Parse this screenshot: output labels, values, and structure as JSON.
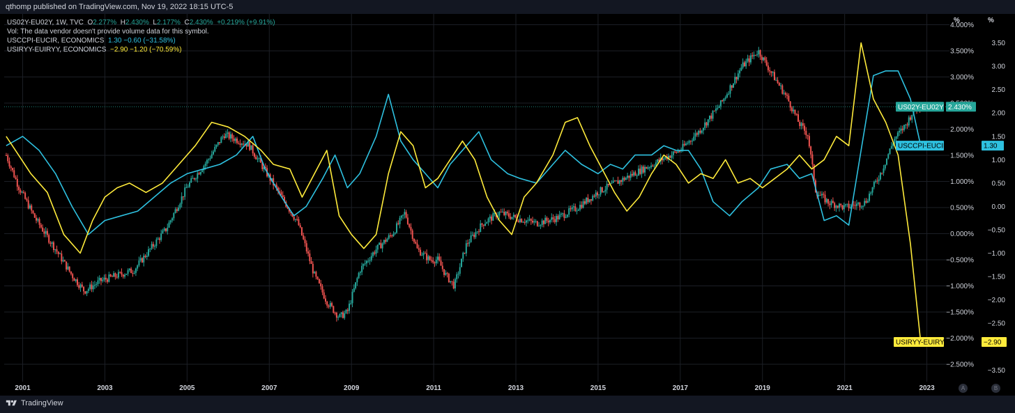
{
  "header": {
    "publish_line": "qthomp published on TradingView.com, Nov 19, 2022 18:15 UTC-5"
  },
  "legend": {
    "symbol": "US02Y-EU02Y, 1W, TVC",
    "o_label": "O",
    "o_value": "2.277%",
    "h_label": "H",
    "h_value": "2.430%",
    "l_label": "L",
    "l_value": "2.177%",
    "c_label": "C",
    "c_value": "2.430%",
    "change": "+0.219% (+9.91%)",
    "vol_note": "Vol: The data vendor doesn't provide volume data for this symbol.",
    "cpi_name": "USCCPI-EUCIR, ECONOMICS",
    "cpi_values": "1.30  −0.60 (−31.58%)",
    "iryy_name": "USIRYY-EUIRYY, ECONOMICS",
    "iryy_values": "−2.90  −1.20 (−70.59%)"
  },
  "footer": {
    "brand": "TradingView",
    "btn_a": "A",
    "btn_b": "B"
  },
  "colors": {
    "bg": "#000000",
    "up": "#26a69a",
    "down": "#ef5350",
    "cpi": "#2ec1e0",
    "iryy": "#ffeb3b",
    "grid": "#1c1f26"
  },
  "chart_data": {
    "type": "line",
    "title": "",
    "x_label": "",
    "time_ticks": [
      "2001",
      "2003",
      "2005",
      "2007",
      "2009",
      "2011",
      "2013",
      "2015",
      "2017",
      "2019",
      "2021",
      "2023"
    ],
    "left_axis": {
      "header": "%",
      "ticks": [
        "4.000%",
        "3.500%",
        "3.000%",
        "2.500%",
        "2.000%",
        "1.500%",
        "1.000%",
        "0.500%",
        "0.000%",
        "−0.500%",
        "−1.000%",
        "−1.500%",
        "−2.000%",
        "−2.500%"
      ],
      "range": [
        -2.7,
        4.1
      ]
    },
    "right_axis": {
      "header": "%",
      "ticks": [
        "3.50",
        "3.00",
        "2.50",
        "2.00",
        "1.50",
        "1.00",
        "0.50",
        "0.00",
        "−0.50",
        "−1.00",
        "−1.50",
        "−2.00",
        "−2.50",
        "−3.50"
      ],
      "range": [
        -3.6,
        4.0
      ]
    },
    "series": [
      {
        "name": "US02Y-EU02Y",
        "style": "candles",
        "axis": "left",
        "last_label": "2.430%",
        "points": [
          [
            2000.6,
            1.5
          ],
          [
            2000.9,
            0.9
          ],
          [
            2001.3,
            0.3
          ],
          [
            2001.8,
            -0.3
          ],
          [
            2002.2,
            -0.8
          ],
          [
            2002.5,
            -1.1
          ],
          [
            2002.9,
            -0.9
          ],
          [
            2003.3,
            -0.8
          ],
          [
            2003.7,
            -0.7
          ],
          [
            2004.0,
            -0.4
          ],
          [
            2004.5,
            0.1
          ],
          [
            2005.0,
            0.9
          ],
          [
            2005.5,
            1.4
          ],
          [
            2005.9,
            1.9
          ],
          [
            2006.5,
            1.7
          ],
          [
            2006.9,
            1.2
          ],
          [
            2007.3,
            0.7
          ],
          [
            2007.7,
            0.2
          ],
          [
            2008.1,
            -0.8
          ],
          [
            2008.4,
            -1.3
          ],
          [
            2008.7,
            -1.6
          ],
          [
            2008.9,
            -1.5
          ],
          [
            2009.2,
            -0.7
          ],
          [
            2009.6,
            -0.3
          ],
          [
            2010.0,
            0.0
          ],
          [
            2010.3,
            0.4
          ],
          [
            2010.6,
            -0.3
          ],
          [
            2010.9,
            -0.5
          ],
          [
            2011.1,
            -0.5
          ],
          [
            2011.3,
            -0.8
          ],
          [
            2011.5,
            -1.0
          ],
          [
            2011.8,
            -0.2
          ],
          [
            2012.2,
            0.2
          ],
          [
            2012.6,
            0.4
          ],
          [
            2013.0,
            0.3
          ],
          [
            2013.5,
            0.2
          ],
          [
            2014.0,
            0.3
          ],
          [
            2014.5,
            0.5
          ],
          [
            2015.0,
            0.8
          ],
          [
            2015.5,
            1.0
          ],
          [
            2016.0,
            1.2
          ],
          [
            2016.5,
            1.4
          ],
          [
            2017.0,
            1.6
          ],
          [
            2017.5,
            2.0
          ],
          [
            2018.0,
            2.5
          ],
          [
            2018.5,
            3.2
          ],
          [
            2018.9,
            3.5
          ],
          [
            2019.2,
            3.1
          ],
          [
            2019.6,
            2.6
          ],
          [
            2019.9,
            2.1
          ],
          [
            2020.1,
            1.9
          ],
          [
            2020.3,
            0.8
          ],
          [
            2020.6,
            0.6
          ],
          [
            2021.0,
            0.5
          ],
          [
            2021.5,
            0.6
          ],
          [
            2021.9,
            1.2
          ],
          [
            2022.2,
            1.8
          ],
          [
            2022.5,
            2.1
          ],
          [
            2022.7,
            2.4
          ],
          [
            2022.85,
            2.43
          ]
        ]
      },
      {
        "name": "USCCPI-EUCIR",
        "style": "line",
        "axis": "right",
        "last_label": "1.30",
        "points": [
          [
            2000.6,
            1.3
          ],
          [
            2001.0,
            1.5
          ],
          [
            2001.4,
            1.2
          ],
          [
            2001.8,
            0.7
          ],
          [
            2002.2,
            0.0
          ],
          [
            2002.6,
            -0.6
          ],
          [
            2003.0,
            -0.3
          ],
          [
            2003.4,
            -0.2
          ],
          [
            2003.8,
            -0.1
          ],
          [
            2004.2,
            0.2
          ],
          [
            2004.6,
            0.5
          ],
          [
            2005.0,
            0.7
          ],
          [
            2005.4,
            0.8
          ],
          [
            2005.8,
            0.9
          ],
          [
            2006.2,
            1.1
          ],
          [
            2006.6,
            1.5
          ],
          [
            2006.9,
            0.8
          ],
          [
            2007.3,
            0.2
          ],
          [
            2007.6,
            -0.2
          ],
          [
            2007.9,
            0.0
          ],
          [
            2008.3,
            0.6
          ],
          [
            2008.6,
            1.1
          ],
          [
            2008.9,
            0.4
          ],
          [
            2009.2,
            0.7
          ],
          [
            2009.6,
            1.5
          ],
          [
            2009.9,
            2.4
          ],
          [
            2010.2,
            1.4
          ],
          [
            2010.5,
            1.0
          ],
          [
            2010.8,
            0.7
          ],
          [
            2011.1,
            0.4
          ],
          [
            2011.4,
            0.9
          ],
          [
            2011.8,
            1.3
          ],
          [
            2012.1,
            1.6
          ],
          [
            2012.4,
            1.0
          ],
          [
            2012.8,
            0.7
          ],
          [
            2013.1,
            0.6
          ],
          [
            2013.5,
            0.5
          ],
          [
            2013.9,
            0.9
          ],
          [
            2014.2,
            1.2
          ],
          [
            2014.6,
            0.9
          ],
          [
            2015.0,
            0.7
          ],
          [
            2015.3,
            0.9
          ],
          [
            2015.6,
            0.8
          ],
          [
            2015.9,
            1.1
          ],
          [
            2016.3,
            1.1
          ],
          [
            2016.6,
            1.3
          ],
          [
            2016.9,
            1.2
          ],
          [
            2017.2,
            1.2
          ],
          [
            2017.5,
            0.8
          ],
          [
            2017.8,
            0.1
          ],
          [
            2018.2,
            -0.2
          ],
          [
            2018.5,
            0.1
          ],
          [
            2018.9,
            0.4
          ],
          [
            2019.2,
            0.8
          ],
          [
            2019.6,
            0.9
          ],
          [
            2019.9,
            0.6
          ],
          [
            2020.2,
            0.7
          ],
          [
            2020.5,
            -0.3
          ],
          [
            2020.8,
            -0.2
          ],
          [
            2021.1,
            -0.4
          ],
          [
            2021.4,
            1.2
          ],
          [
            2021.7,
            2.8
          ],
          [
            2022.0,
            2.9
          ],
          [
            2022.3,
            2.9
          ],
          [
            2022.6,
            2.3
          ],
          [
            2022.85,
            1.3
          ]
        ]
      },
      {
        "name": "USIRYY-EUIRYY",
        "style": "line",
        "axis": "right",
        "last_label": "−2.90",
        "points": [
          [
            2000.6,
            1.5
          ],
          [
            2000.9,
            1.1
          ],
          [
            2001.2,
            0.7
          ],
          [
            2001.6,
            0.3
          ],
          [
            2002.0,
            -0.6
          ],
          [
            2002.4,
            -1.0
          ],
          [
            2002.7,
            -0.3
          ],
          [
            2003.0,
            0.2
          ],
          [
            2003.3,
            0.4
          ],
          [
            2003.6,
            0.5
          ],
          [
            2004.0,
            0.3
          ],
          [
            2004.4,
            0.5
          ],
          [
            2004.8,
            0.9
          ],
          [
            2005.2,
            1.3
          ],
          [
            2005.6,
            1.8
          ],
          [
            2006.0,
            1.7
          ],
          [
            2006.4,
            1.5
          ],
          [
            2006.8,
            1.2
          ],
          [
            2007.1,
            0.9
          ],
          [
            2007.5,
            0.8
          ],
          [
            2007.8,
            0.2
          ],
          [
            2008.1,
            0.7
          ],
          [
            2008.4,
            1.2
          ],
          [
            2008.7,
            -0.2
          ],
          [
            2009.0,
            -0.6
          ],
          [
            2009.3,
            -0.9
          ],
          [
            2009.6,
            -0.6
          ],
          [
            2009.9,
            0.7
          ],
          [
            2010.2,
            1.6
          ],
          [
            2010.5,
            1.3
          ],
          [
            2010.8,
            0.4
          ],
          [
            2011.1,
            0.6
          ],
          [
            2011.4,
            1.0
          ],
          [
            2011.7,
            1.4
          ],
          [
            2012.0,
            1.0
          ],
          [
            2012.3,
            0.2
          ],
          [
            2012.6,
            -0.3
          ],
          [
            2012.9,
            -0.6
          ],
          [
            2013.2,
            0.2
          ],
          [
            2013.5,
            0.5
          ],
          [
            2013.9,
            1.1
          ],
          [
            2014.2,
            1.8
          ],
          [
            2014.5,
            1.9
          ],
          [
            2014.8,
            1.3
          ],
          [
            2015.1,
            0.8
          ],
          [
            2015.4,
            0.3
          ],
          [
            2015.7,
            -0.1
          ],
          [
            2016.0,
            0.2
          ],
          [
            2016.3,
            0.7
          ],
          [
            2016.6,
            1.1
          ],
          [
            2016.9,
            0.9
          ],
          [
            2017.2,
            0.5
          ],
          [
            2017.5,
            0.7
          ],
          [
            2017.8,
            0.6
          ],
          [
            2018.1,
            1.0
          ],
          [
            2018.4,
            0.5
          ],
          [
            2018.7,
            0.6
          ],
          [
            2019.0,
            0.4
          ],
          [
            2019.3,
            0.6
          ],
          [
            2019.6,
            0.8
          ],
          [
            2019.9,
            1.1
          ],
          [
            2020.2,
            0.8
          ],
          [
            2020.5,
            1.0
          ],
          [
            2020.8,
            1.5
          ],
          [
            2021.1,
            1.3
          ],
          [
            2021.4,
            3.5
          ],
          [
            2021.7,
            2.3
          ],
          [
            2022.0,
            1.8
          ],
          [
            2022.3,
            1.1
          ],
          [
            2022.6,
            -0.8
          ],
          [
            2022.85,
            -2.9
          ]
        ]
      }
    ],
    "current_level_line": 2.43
  }
}
